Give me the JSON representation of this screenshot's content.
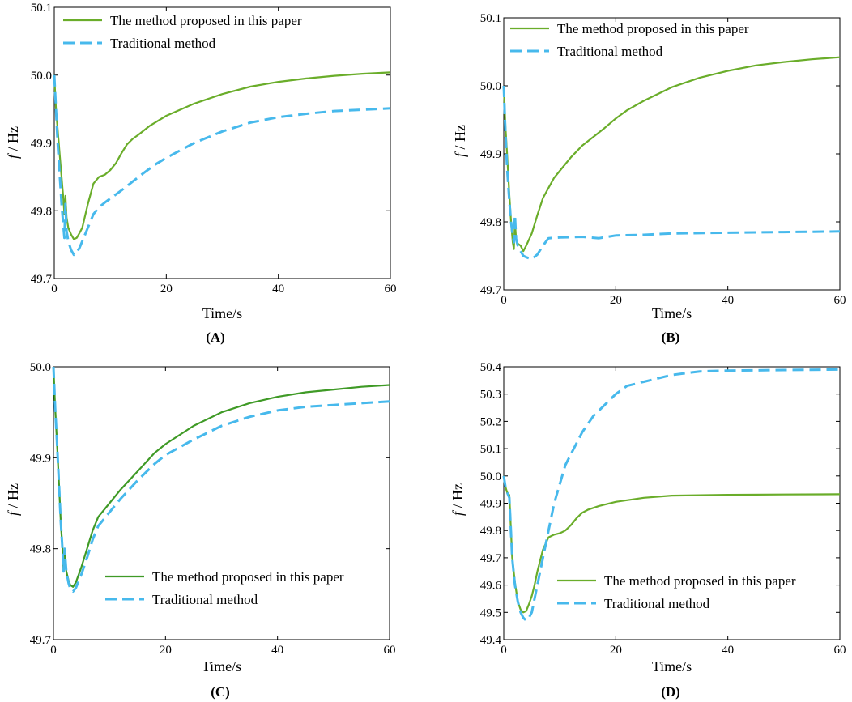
{
  "colors": {
    "proposed": "#6aad2a",
    "proposed_dark": "#3f9a26",
    "traditional": "#47b9ec"
  },
  "chart_data": [
    {
      "type": "line",
      "panel_label": "(A)",
      "xlabel": "Time/s",
      "ylabel_italic": "f",
      "ylabel_rest": " / Hz",
      "xlim": [
        0,
        60
      ],
      "ylim": [
        49.7,
        50.1
      ],
      "xticks": [
        0,
        20,
        40,
        60
      ],
      "xtick_labels": [
        "0",
        "20",
        "40",
        "60"
      ],
      "yticks": [
        49.7,
        49.8,
        49.9,
        50.0,
        50.1
      ],
      "ytick_labels": [
        "49.7",
        "49.8",
        "49.9",
        "50.0",
        "50.1"
      ],
      "legend_position": "top-left",
      "series": [
        {
          "name": "The method proposed in this paper",
          "style": "solid",
          "color_key": "proposed",
          "x": [
            0,
            0.3,
            0.6,
            1.0,
            1.3,
            1.6,
            1.8,
            2.0,
            2.2,
            2.5,
            3.0,
            3.5,
            4.0,
            4.5,
            5.0,
            6.0,
            7.0,
            8.0,
            9.0,
            10.0,
            11.0,
            12.0,
            13.0,
            14.0,
            15.0,
            17.0,
            20.0,
            25.0,
            30.0,
            35.0,
            40.0,
            45.0,
            50.0,
            55.0,
            60.0
          ],
          "y": [
            50.0,
            49.95,
            49.92,
            49.88,
            49.85,
            49.82,
            49.795,
            49.822,
            49.79,
            49.775,
            49.765,
            49.758,
            49.76,
            49.767,
            49.775,
            49.81,
            49.84,
            49.85,
            49.853,
            49.86,
            49.87,
            49.885,
            49.898,
            49.906,
            49.912,
            49.925,
            49.94,
            49.958,
            49.972,
            49.983,
            49.99,
            49.995,
            49.999,
            50.002,
            50.004
          ]
        },
        {
          "name": "Traditional method",
          "style": "dashed",
          "color_key": "traditional",
          "x": [
            0,
            0.3,
            0.6,
            1.0,
            1.3,
            1.6,
            1.8,
            2.0,
            2.2,
            2.5,
            3.0,
            3.5,
            4.0,
            4.5,
            5.0,
            6.0,
            7.0,
            8.0,
            9.0,
            10.0,
            12.0,
            14.0,
            16.0,
            18.0,
            20.0,
            25.0,
            30.0,
            35.0,
            40.0,
            45.0,
            50.0,
            55.0,
            60.0
          ],
          "y": [
            50.0,
            49.95,
            49.9,
            49.85,
            49.81,
            49.78,
            49.76,
            49.81,
            49.77,
            49.755,
            49.742,
            49.735,
            49.738,
            49.745,
            49.755,
            49.775,
            49.795,
            49.805,
            49.812,
            49.818,
            49.83,
            49.843,
            49.856,
            49.868,
            49.878,
            49.9,
            49.917,
            49.93,
            49.938,
            49.943,
            49.947,
            49.949,
            49.951
          ]
        }
      ]
    },
    {
      "type": "line",
      "panel_label": "(B)",
      "xlabel": "Time/s",
      "ylabel_italic": "f",
      "ylabel_rest": " / Hz",
      "xlim": [
        0,
        60
      ],
      "ylim": [
        49.7,
        50.1
      ],
      "xticks": [
        0,
        20,
        40,
        60
      ],
      "xtick_labels": [
        "0",
        "20",
        "40",
        "60"
      ],
      "yticks": [
        49.7,
        49.8,
        49.9,
        50.0,
        50.1
      ],
      "ytick_labels": [
        "49.7",
        "49.8",
        "49.9",
        "50.0",
        "50.1"
      ],
      "legend_position": "top-left",
      "series": [
        {
          "name": "The method proposed in this paper",
          "style": "solid",
          "color_key": "proposed",
          "x": [
            0,
            0.3,
            0.6,
            1.0,
            1.3,
            1.6,
            1.8,
            2.0,
            2.2,
            2.5,
            3.0,
            3.5,
            4.0,
            5.0,
            6.0,
            7.0,
            8.0,
            9.0,
            10.0,
            12.0,
            14.0,
            16.0,
            18.0,
            20.0,
            22.0,
            25.0,
            30.0,
            35.0,
            40.0,
            45.0,
            50.0,
            55.0,
            60.0
          ],
          "y": [
            50.0,
            49.94,
            49.9,
            49.84,
            49.8,
            49.77,
            49.76,
            49.8,
            49.775,
            49.768,
            49.765,
            49.757,
            49.765,
            49.783,
            49.81,
            49.835,
            49.85,
            49.865,
            49.875,
            49.895,
            49.912,
            49.925,
            49.938,
            49.952,
            49.964,
            49.978,
            49.998,
            50.012,
            50.022,
            50.03,
            50.035,
            50.039,
            50.042
          ]
        },
        {
          "name": "Traditional method",
          "style": "dashed",
          "color_key": "traditional",
          "x": [
            0,
            0.3,
            0.6,
            1.0,
            1.3,
            1.6,
            1.8,
            2.0,
            2.2,
            2.5,
            3.0,
            3.5,
            4.0,
            5.0,
            6.0,
            7.0,
            8.0,
            10.0,
            14.0,
            17.0,
            20.0,
            25.0,
            30.0,
            40.0,
            50.0,
            60.0
          ],
          "y": [
            50.0,
            49.93,
            49.88,
            49.83,
            49.8,
            49.78,
            49.77,
            49.81,
            49.775,
            49.765,
            49.757,
            49.75,
            49.748,
            49.745,
            49.752,
            49.765,
            49.776,
            49.777,
            49.778,
            49.776,
            49.78,
            49.781,
            49.783,
            49.784,
            49.785,
            49.786
          ]
        }
      ]
    },
    {
      "type": "line",
      "panel_label": "(C)",
      "xlabel": "Time/s",
      "ylabel_italic": "f",
      "ylabel_rest": " / Hz",
      "xlim": [
        0,
        60
      ],
      "ylim": [
        49.7,
        50.0
      ],
      "xticks": [
        0,
        20,
        40,
        60
      ],
      "xtick_labels": [
        "0",
        "20",
        "40",
        "60"
      ],
      "yticks": [
        49.7,
        49.8,
        49.9,
        50.0
      ],
      "ytick_labels": [
        "49.7",
        "49.8",
        "49.9",
        "50.0"
      ],
      "legend_position": "bottom-right",
      "series": [
        {
          "name": "The method proposed in this paper",
          "style": "solid",
          "color_key": "proposed_dark",
          "x": [
            0,
            0.3,
            0.6,
            1.0,
            1.3,
            1.6,
            1.8,
            2.0,
            2.3,
            2.7,
            3.0,
            3.5,
            4.0,
            5.0,
            6.0,
            7.0,
            8.0,
            10.0,
            12.0,
            15.0,
            18.0,
            20.0,
            25.0,
            30.0,
            35.0,
            40.0,
            45.0,
            50.0,
            55.0,
            60.0
          ],
          "y": [
            50.0,
            49.955,
            49.92,
            49.87,
            49.83,
            49.8,
            49.775,
            49.795,
            49.775,
            49.765,
            49.76,
            49.758,
            49.763,
            49.78,
            49.8,
            49.82,
            49.835,
            49.85,
            49.865,
            49.885,
            49.905,
            49.915,
            49.935,
            49.95,
            49.96,
            49.967,
            49.972,
            49.975,
            49.978,
            49.98
          ]
        },
        {
          "name": "Traditional method",
          "style": "dashed",
          "color_key": "traditional",
          "x": [
            0,
            0.3,
            0.6,
            1.0,
            1.3,
            1.6,
            1.8,
            2.0,
            2.3,
            2.7,
            3.0,
            3.5,
            4.0,
            5.0,
            6.0,
            7.0,
            8.0,
            10.0,
            12.0,
            15.0,
            18.0,
            20.0,
            25.0,
            30.0,
            35.0,
            40.0,
            45.0,
            50.0,
            55.0,
            60.0
          ],
          "y": [
            50.0,
            49.955,
            49.92,
            49.87,
            49.83,
            49.8,
            49.775,
            49.8,
            49.775,
            49.762,
            49.756,
            49.753,
            49.757,
            49.772,
            49.79,
            49.81,
            49.825,
            49.84,
            49.855,
            49.875,
            49.893,
            49.903,
            49.92,
            49.935,
            49.945,
            49.952,
            49.956,
            49.958,
            49.96,
            49.962
          ]
        }
      ]
    },
    {
      "type": "line",
      "panel_label": "(D)",
      "xlabel": "Time/s",
      "ylabel_italic": "f",
      "ylabel_rest": " / Hz",
      "xlim": [
        0,
        60
      ],
      "ylim": [
        49.4,
        50.4
      ],
      "xticks": [
        0,
        20,
        40,
        60
      ],
      "xtick_labels": [
        "0",
        "20",
        "40",
        "60"
      ],
      "yticks": [
        49.4,
        49.5,
        49.6,
        49.7,
        49.8,
        49.9,
        50.0,
        50.1,
        50.2,
        50.3,
        50.4
      ],
      "ytick_labels": [
        "49.4",
        "49.5",
        "49.6",
        "49.7",
        "49.8",
        "49.9",
        "50.0",
        "50.1",
        "50.2",
        "50.3",
        "50.4"
      ],
      "legend_position": "bottom-right",
      "series": [
        {
          "name": "The method proposed in this paper",
          "style": "solid",
          "color_key": "proposed",
          "x": [
            0,
            0.3,
            0.6,
            1.0,
            1.5,
            2.0,
            2.5,
            3.0,
            3.5,
            4.0,
            4.5,
            5.0,
            5.5,
            6.0,
            7.0,
            8.0,
            9.0,
            10.0,
            11.0,
            12.0,
            13.0,
            14.0,
            15.0,
            17.0,
            20.0,
            25.0,
            30.0,
            40.0,
            50.0,
            60.0
          ],
          "y": [
            50.0,
            49.96,
            49.94,
            49.93,
            49.7,
            49.61,
            49.54,
            49.51,
            49.5,
            49.505,
            49.53,
            49.56,
            49.6,
            49.65,
            49.73,
            49.775,
            49.785,
            49.79,
            49.8,
            49.82,
            49.845,
            49.865,
            49.876,
            49.89,
            49.905,
            49.92,
            49.928,
            49.931,
            49.932,
            49.933
          ]
        },
        {
          "name": "Traditional method",
          "style": "dashed",
          "color_key": "traditional",
          "x": [
            0,
            0.3,
            0.6,
            1.0,
            1.5,
            2.0,
            2.5,
            3.0,
            3.5,
            4.0,
            4.5,
            5.0,
            5.5,
            6.0,
            7.0,
            8.0,
            9.0,
            10.0,
            11.0,
            12.0,
            14.0,
            16.0,
            18.0,
            20.0,
            22.0,
            25.0,
            30.0,
            35.0,
            40.0,
            50.0,
            60.0
          ],
          "y": [
            50.0,
            49.96,
            49.94,
            49.92,
            49.7,
            49.6,
            49.54,
            49.5,
            49.48,
            49.47,
            49.48,
            49.5,
            49.55,
            49.6,
            49.7,
            49.8,
            49.9,
            49.97,
            50.04,
            50.08,
            50.16,
            50.22,
            50.26,
            50.3,
            50.33,
            50.345,
            50.37,
            50.383,
            50.386,
            50.388,
            50.39
          ]
        }
      ]
    }
  ]
}
